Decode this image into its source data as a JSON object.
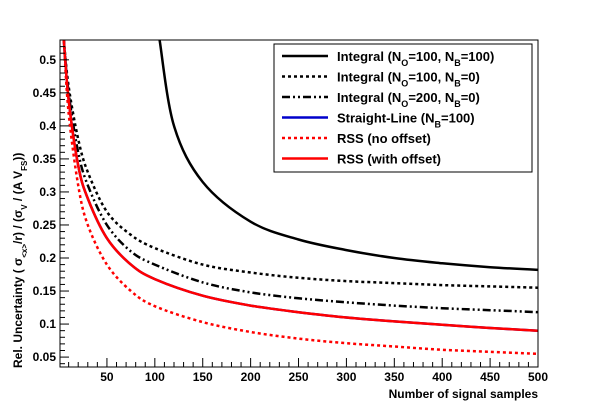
{
  "chart_data": {
    "type": "line",
    "xlabel": "Number of signal samples",
    "ylabel": "Rel. Uncertainty ( σ₍<x>₎/r) / (σᵥ / (A V_FS))",
    "xlim": [
      1,
      500
    ],
    "ylim": [
      0.035,
      0.53
    ],
    "grid": false,
    "legend_position": "top-right",
    "x_ticks": [
      50,
      100,
      150,
      200,
      250,
      300,
      350,
      400,
      450,
      500
    ],
    "y_ticks": [
      0.05,
      0.1,
      0.15,
      0.2,
      0.25,
      0.3,
      0.35,
      0.4,
      0.45,
      0.5
    ],
    "x_tick_labels": [
      "50",
      "100",
      "150",
      "200",
      "250",
      "300",
      "350",
      "400",
      "450",
      "500"
    ],
    "y_tick_labels": [
      "0.05",
      "0.1",
      "0.15",
      "0.2",
      "0.25",
      "0.3",
      "0.35",
      "0.4",
      "0.45",
      "0.5"
    ],
    "series": [
      {
        "name": "Integral (N_O=100, N_B=100)",
        "legend_parts": [
          "Integral (N",
          "O",
          "=100, N",
          "B",
          "=100)"
        ],
        "color": "#000000",
        "dash": "solid",
        "x": [
          105,
          120,
          150,
          200,
          250,
          300,
          350,
          400,
          450,
          500
        ],
        "y": [
          0.53,
          0.4,
          0.315,
          0.255,
          0.228,
          0.212,
          0.2,
          0.192,
          0.186,
          0.182
        ]
      },
      {
        "name": "Integral (N_O=100, N_B=0)",
        "legend_parts": [
          "Integral (N",
          "O",
          "=100, N",
          "B",
          "=0)"
        ],
        "color": "#000000",
        "dash": "dotted",
        "x": [
          5,
          10,
          20,
          30,
          50,
          75,
          100,
          150,
          200,
          250,
          300,
          350,
          400,
          450,
          500
        ],
        "y": [
          0.53,
          0.46,
          0.38,
          0.33,
          0.27,
          0.235,
          0.215,
          0.19,
          0.178,
          0.17,
          0.165,
          0.162,
          0.159,
          0.157,
          0.155
        ]
      },
      {
        "name": "Integral (N_O=200, N_B=0)",
        "legend_parts": [
          "Integral (N",
          "O",
          "=200, N",
          "B",
          "=0)"
        ],
        "color": "#000000",
        "dash": "dashdot",
        "x": [
          5,
          10,
          20,
          30,
          50,
          75,
          100,
          150,
          200,
          250,
          300,
          350,
          400,
          450,
          500
        ],
        "y": [
          0.53,
          0.45,
          0.36,
          0.31,
          0.25,
          0.21,
          0.19,
          0.163,
          0.148,
          0.139,
          0.133,
          0.128,
          0.124,
          0.121,
          0.118
        ]
      },
      {
        "name": "Straight-Line (N_B=100)",
        "legend_parts": [
          "Straight-Line (N",
          "B",
          "=100)"
        ],
        "color": "#0000cc",
        "dash": "solid",
        "x": [
          5,
          10,
          20,
          30,
          50,
          75,
          100,
          150,
          200,
          250,
          300,
          350,
          400,
          450,
          500
        ],
        "y": [
          0.53,
          0.44,
          0.34,
          0.29,
          0.23,
          0.19,
          0.168,
          0.143,
          0.128,
          0.118,
          0.11,
          0.104,
          0.099,
          0.094,
          0.09
        ]
      },
      {
        "name": "RSS (no offset)",
        "legend_parts": [
          "RSS (no offset)"
        ],
        "color": "#ff0000",
        "dash": "dotted",
        "x": [
          5,
          10,
          20,
          30,
          50,
          75,
          100,
          150,
          200,
          250,
          300,
          350,
          400,
          450,
          500
        ],
        "y": [
          0.53,
          0.42,
          0.31,
          0.25,
          0.19,
          0.15,
          0.127,
          0.103,
          0.088,
          0.078,
          0.071,
          0.066,
          0.061,
          0.058,
          0.055
        ]
      },
      {
        "name": "RSS (with offset)",
        "legend_parts": [
          "RSS (with offset)"
        ],
        "color": "#ff0000",
        "dash": "solid",
        "x": [
          5,
          10,
          20,
          30,
          50,
          75,
          100,
          150,
          200,
          250,
          300,
          350,
          400,
          450,
          500
        ],
        "y": [
          0.53,
          0.44,
          0.34,
          0.29,
          0.23,
          0.19,
          0.168,
          0.143,
          0.128,
          0.118,
          0.11,
          0.104,
          0.099,
          0.094,
          0.09
        ]
      }
    ]
  }
}
